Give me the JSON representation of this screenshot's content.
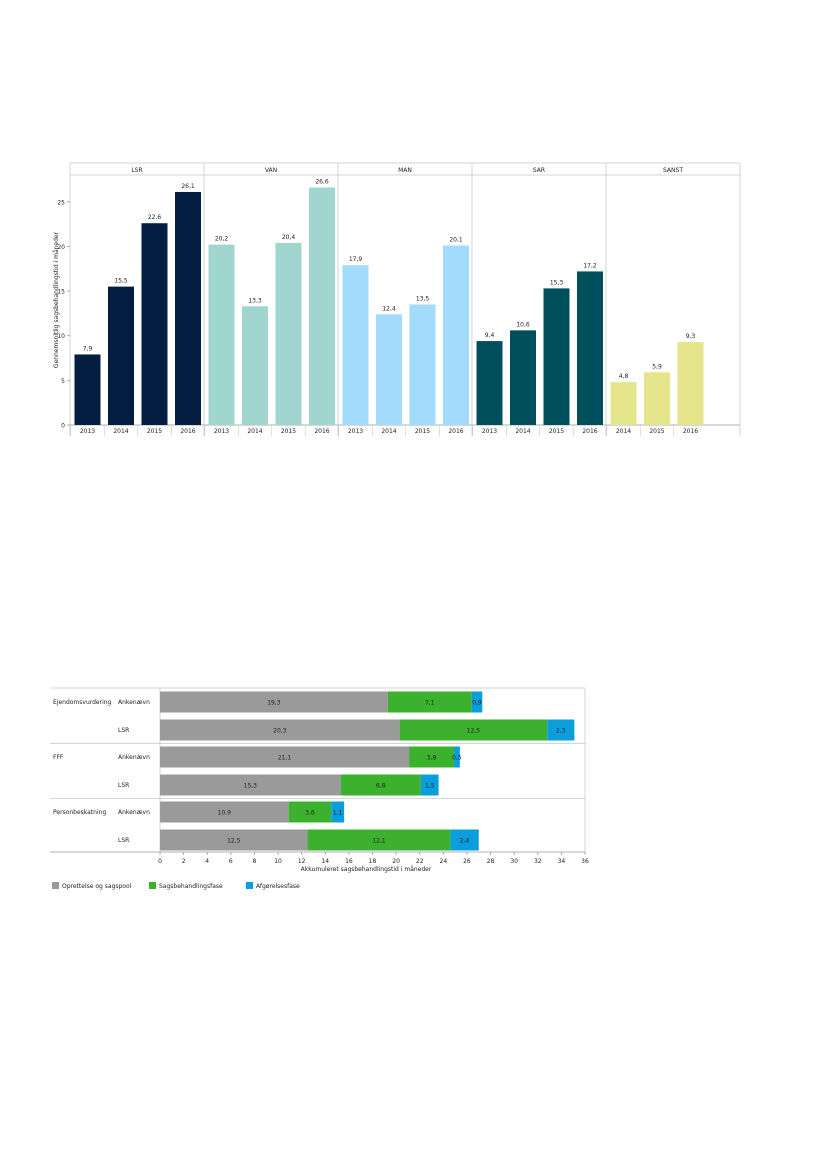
{
  "chart_data": [
    {
      "type": "bar",
      "ylabel": "Gennemsnitlig sagsbehandlingstid i måneder",
      "ylim": [
        0,
        28
      ],
      "yticks": [
        0,
        5,
        10,
        15,
        20,
        25
      ],
      "grid": false,
      "panels": [
        {
          "name": "LSR",
          "color": "#041e42",
          "categories": [
            "2013",
            "2014",
            "2015",
            "2016"
          ],
          "values": [
            7.9,
            15.5,
            22.6,
            26.1
          ],
          "labels": [
            "7,9",
            "15,5",
            "22,6",
            "26,1"
          ]
        },
        {
          "name": "VAN",
          "color": "#a0d5d0",
          "categories": [
            "2013",
            "2014",
            "2015",
            "2016"
          ],
          "values": [
            20.2,
            13.3,
            20.4,
            26.6
          ],
          "labels": [
            "20,2",
            "13,3",
            "20,4",
            "26,6"
          ]
        },
        {
          "name": "MAN",
          "color": "#a2dbfb",
          "categories": [
            "2013",
            "2014",
            "2015",
            "2016"
          ],
          "values": [
            17.9,
            12.4,
            13.5,
            20.1
          ],
          "labels": [
            "17,9",
            "12,4",
            "13,5",
            "20,1"
          ]
        },
        {
          "name": "SAR",
          "color": "#004f5c",
          "categories": [
            "2013",
            "2014",
            "2015",
            "2016"
          ],
          "values": [
            9.4,
            10.6,
            15.3,
            17.2
          ],
          "labels": [
            "9,4",
            "10,6",
            "15,3",
            "17,2"
          ]
        },
        {
          "name": "SANST",
          "color": "#e5e68c",
          "categories": [
            "2014",
            "2015",
            "2016"
          ],
          "values": [
            4.8,
            5.9,
            9.3
          ],
          "labels": [
            "4,8",
            "5,9",
            "9,3"
          ]
        }
      ]
    },
    {
      "type": "bar",
      "orientation": "horizontal",
      "stacked": true,
      "xlabel": "Akkumuleret sagsbehandlingstid i måneder",
      "xlim": [
        0,
        36
      ],
      "xticks": [
        0,
        2,
        4,
        6,
        8,
        10,
        12,
        14,
        16,
        18,
        20,
        22,
        24,
        26,
        28,
        30,
        32,
        34,
        36
      ],
      "legend_position": "bottom-left",
      "series": [
        {
          "name": "Oprettelse og sagspool",
          "color": "#9a9a9a"
        },
        {
          "name": "Sagsbehandlingsfase",
          "color": "#3cb12e"
        },
        {
          "name": "Afgørelsesfase",
          "color": "#0a9fdc"
        }
      ],
      "groups": [
        {
          "name": "Ejendomsvurdering",
          "rows": [
            {
              "name": "Ankenævn",
              "values": [
                19.3,
                7.1,
                0.9
              ],
              "labels": [
                "19,3",
                "7,1",
                "0,9"
              ]
            },
            {
              "name": "LSR",
              "values": [
                20.3,
                12.5,
                2.3
              ],
              "labels": [
                "20,3",
                "12,5",
                "2,3"
              ]
            }
          ]
        },
        {
          "name": "FFF",
          "rows": [
            {
              "name": "Ankenævn",
              "values": [
                21.1,
                3.8,
                0.5
              ],
              "labels": [
                "21,1",
                "3,8",
                "0,5"
              ]
            },
            {
              "name": "LSR",
              "values": [
                15.3,
                6.8,
                1.5
              ],
              "labels": [
                "15,3",
                "6,8",
                "1,5"
              ]
            }
          ]
        },
        {
          "name": "Personbeskatning",
          "rows": [
            {
              "name": "Ankenævn",
              "values": [
                10.9,
                3.6,
                1.1
              ],
              "labels": [
                "10,9",
                "3,6",
                "1,1"
              ]
            },
            {
              "name": "LSR",
              "values": [
                12.5,
                12.1,
                2.4
              ],
              "labels": [
                "12,5",
                "12,1",
                "2,4"
              ]
            }
          ]
        }
      ]
    }
  ]
}
